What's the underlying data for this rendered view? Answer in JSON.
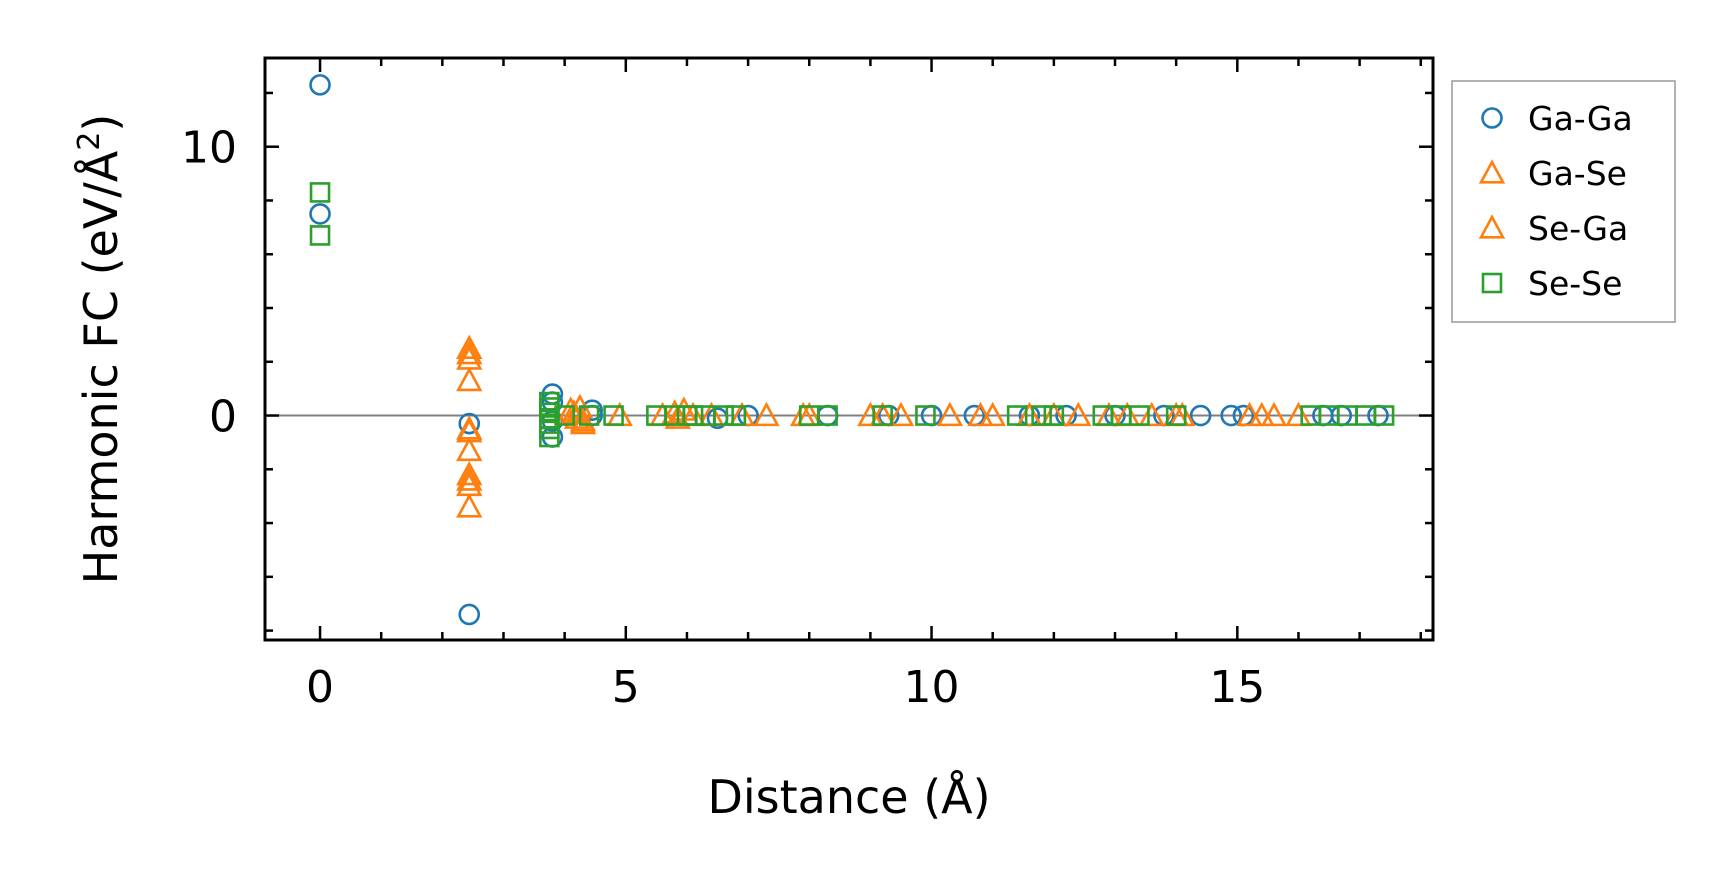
{
  "chart_data": {
    "type": "scatter",
    "xlabel": "Distance (Å)",
    "ylabel": "Harmonic FC (eV/Å²)",
    "ylabel_parts": {
      "main": "Harmonic FC (eV/Å",
      "sup": "2",
      "end": ")"
    },
    "xlim": [
      -0.9,
      18.2
    ],
    "ylim": [
      -8.35,
      13.3
    ],
    "xticks": [
      0,
      5,
      10,
      15
    ],
    "yticks": [
      0,
      10
    ],
    "x_minor_step": 1,
    "y_minor_step": 2,
    "zero_line": true,
    "legend_position": "outside-right-top",
    "series": [
      {
        "name": "Ga-Ga",
        "marker": "circle",
        "color": "#1f77b4",
        "points": [
          [
            0,
            12.3
          ],
          [
            0,
            7.5
          ],
          [
            2.44,
            -0.3
          ],
          [
            2.44,
            -7.4
          ],
          [
            3.8,
            0.8
          ],
          [
            3.8,
            0.5
          ],
          [
            3.8,
            -0.2
          ],
          [
            3.8,
            -0.8
          ],
          [
            4.45,
            0.2
          ],
          [
            4.45,
            0.0
          ],
          [
            6.5,
            -0.1
          ],
          [
            7.0,
            0.0
          ],
          [
            8.3,
            0.0
          ],
          [
            9.3,
            0.0
          ],
          [
            10.0,
            0.0
          ],
          [
            10.7,
            0.0
          ],
          [
            11.6,
            0.0
          ],
          [
            12.2,
            0.0
          ],
          [
            13.0,
            0.0
          ],
          [
            13.8,
            0.0
          ],
          [
            14.4,
            0.0
          ],
          [
            14.9,
            0.0
          ],
          [
            15.1,
            0.0
          ],
          [
            16.4,
            0.0
          ],
          [
            16.7,
            0.0
          ],
          [
            17.3,
            0.0
          ]
        ]
      },
      {
        "name": "Ga-Se",
        "marker": "triangle",
        "color": "#ff7f0e",
        "points": [
          [
            2.44,
            2.5
          ],
          [
            2.44,
            2.1
          ],
          [
            2.44,
            1.3
          ],
          [
            2.44,
            -0.6
          ],
          [
            2.44,
            -1.3
          ],
          [
            2.44,
            -2.2
          ],
          [
            2.44,
            -2.6
          ],
          [
            2.44,
            -3.4
          ],
          [
            4.1,
            0.2
          ],
          [
            4.2,
            -0.1
          ],
          [
            4.25,
            0.3
          ],
          [
            4.3,
            -0.3
          ],
          [
            4.9,
            0.0
          ],
          [
            5.6,
            0.0
          ],
          [
            5.85,
            -0.1
          ],
          [
            5.95,
            0.2
          ],
          [
            6.4,
            0.0
          ],
          [
            6.9,
            0.0
          ],
          [
            7.3,
            0.0
          ],
          [
            7.9,
            0.0
          ],
          [
            9.0,
            0.0
          ],
          [
            9.5,
            0.0
          ],
          [
            10.3,
            0.0
          ],
          [
            10.8,
            0.0
          ],
          [
            11.6,
            0.0
          ],
          [
            12.4,
            0.0
          ],
          [
            13.2,
            0.0
          ],
          [
            13.6,
            0.0
          ],
          [
            14.1,
            0.0
          ],
          [
            15.2,
            0.0
          ],
          [
            15.6,
            0.0
          ],
          [
            16.0,
            0.0
          ]
        ]
      },
      {
        "name": "Se-Ga",
        "marker": "triangle",
        "color": "#ff7f0e",
        "points": [
          [
            2.44,
            2.3
          ],
          [
            2.44,
            -0.5
          ],
          [
            2.44,
            -2.4
          ],
          [
            4.15,
            0.1
          ],
          [
            4.3,
            -0.2
          ],
          [
            5.8,
            0.1
          ],
          [
            6.1,
            0.0
          ],
          [
            8.0,
            0.0
          ],
          [
            9.2,
            0.0
          ],
          [
            11.0,
            0.0
          ],
          [
            12.0,
            0.0
          ],
          [
            12.9,
            0.0
          ],
          [
            14.0,
            0.0
          ],
          [
            15.4,
            0.0
          ]
        ]
      },
      {
        "name": "Se-Se",
        "marker": "square",
        "color": "#2ca02c",
        "points": [
          [
            0,
            8.3
          ],
          [
            0,
            6.7
          ],
          [
            3.75,
            0.5
          ],
          [
            3.75,
            0.3
          ],
          [
            3.75,
            0.1
          ],
          [
            3.75,
            -0.1
          ],
          [
            3.75,
            -0.3
          ],
          [
            3.75,
            -0.5
          ],
          [
            3.75,
            -0.8
          ],
          [
            4.0,
            0.0
          ],
          [
            4.4,
            0.0
          ],
          [
            4.8,
            0.0
          ],
          [
            5.5,
            0.0
          ],
          [
            5.8,
            0.0
          ],
          [
            6.0,
            0.0
          ],
          [
            6.1,
            0.0
          ],
          [
            6.3,
            0.0
          ],
          [
            6.6,
            0.0
          ],
          [
            6.8,
            0.0
          ],
          [
            8.0,
            0.0
          ],
          [
            8.3,
            0.0
          ],
          [
            9.2,
            0.0
          ],
          [
            9.9,
            0.0
          ],
          [
            11.4,
            0.0
          ],
          [
            11.8,
            0.0
          ],
          [
            12.0,
            0.0
          ],
          [
            12.8,
            0.0
          ],
          [
            13.1,
            0.0
          ],
          [
            13.4,
            0.0
          ],
          [
            14.0,
            0.0
          ],
          [
            16.2,
            0.0
          ],
          [
            16.5,
            0.0
          ],
          [
            16.8,
            0.0
          ],
          [
            17.1,
            0.0
          ],
          [
            17.4,
            0.0
          ]
        ]
      }
    ]
  }
}
